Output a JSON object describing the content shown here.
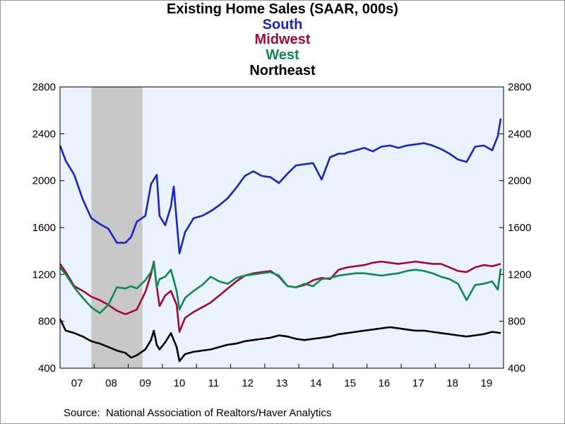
{
  "chart_data": {
    "type": "line",
    "title": "Existing Home Sales (SAAR, 000s)",
    "legend": [
      "South",
      "Midwest",
      "West",
      "Northeast"
    ],
    "legend_placement": "top-center",
    "source": "Source:  National Association of Realtors/Haver Analytics",
    "ylim": [
      400,
      2800
    ],
    "y_ticks": [
      400,
      800,
      1200,
      1600,
      2000,
      2400,
      2800
    ],
    "y_tick_labels": [
      "400",
      "800",
      "1200",
      "1600",
      "2000",
      "2400",
      "2800"
    ],
    "x_tick_labels": [
      "07",
      "08",
      "09",
      "10",
      "11",
      "12",
      "13",
      "14",
      "15",
      "16",
      "17",
      "18",
      "19"
    ],
    "x_range": [
      "2007-01",
      "2019-12"
    ],
    "grid": false,
    "dual_y_axis": true,
    "plot_background": "#eaf3fd",
    "recession_shading": {
      "start": "2007-12",
      "end": "2009-06",
      "color": "#c8c8c8"
    },
    "series": [
      {
        "name": "South",
        "color": "#1a24c4",
        "x": [
          "2007-01",
          "2007-03",
          "2007-06",
          "2007-09",
          "2007-12",
          "2008-03",
          "2008-06",
          "2008-09",
          "2008-12",
          "2009-02",
          "2009-04",
          "2009-07",
          "2009-09",
          "2009-11",
          "2009-12",
          "2010-02",
          "2010-04",
          "2010-05",
          "2010-07",
          "2010-09",
          "2010-12",
          "2011-03",
          "2011-06",
          "2011-09",
          "2011-12",
          "2012-03",
          "2012-06",
          "2012-09",
          "2012-12",
          "2013-03",
          "2013-06",
          "2013-09",
          "2013-12",
          "2014-03",
          "2014-06",
          "2014-09",
          "2014-12",
          "2015-03",
          "2015-05",
          "2015-06",
          "2015-09",
          "2015-12",
          "2016-03",
          "2016-06",
          "2016-09",
          "2016-12",
          "2017-03",
          "2017-06",
          "2017-09",
          "2017-12",
          "2018-03",
          "2018-06",
          "2018-09",
          "2018-12",
          "2019-03",
          "2019-06",
          "2019-09",
          "2019-11",
          "2019-12"
        ],
        "values": [
          2300,
          2170,
          2050,
          1840,
          1680,
          1630,
          1590,
          1470,
          1470,
          1520,
          1650,
          1700,
          1970,
          2050,
          1700,
          1620,
          1780,
          1950,
          1380,
          1560,
          1680,
          1700,
          1740,
          1790,
          1850,
          1940,
          2040,
          2080,
          2040,
          2030,
          1980,
          2060,
          2130,
          2140,
          2150,
          2010,
          2200,
          2230,
          2230,
          2240,
          2260,
          2280,
          2250,
          2290,
          2300,
          2280,
          2300,
          2310,
          2320,
          2300,
          2270,
          2230,
          2180,
          2160,
          2290,
          2300,
          2260,
          2380,
          2530
        ]
      },
      {
        "name": "Midwest",
        "color": "#a30a35",
        "x": [
          "2007-01",
          "2007-03",
          "2007-06",
          "2007-09",
          "2007-12",
          "2008-03",
          "2008-06",
          "2008-09",
          "2008-12",
          "2009-02",
          "2009-04",
          "2009-07",
          "2009-09",
          "2009-10",
          "2009-11",
          "2009-12",
          "2010-02",
          "2010-04",
          "2010-06",
          "2010-07",
          "2010-09",
          "2010-12",
          "2011-03",
          "2011-06",
          "2011-09",
          "2011-12",
          "2012-03",
          "2012-06",
          "2012-09",
          "2012-12",
          "2013-03",
          "2013-06",
          "2013-09",
          "2013-12",
          "2014-03",
          "2014-06",
          "2014-09",
          "2014-12",
          "2015-03",
          "2015-06",
          "2015-09",
          "2015-12",
          "2016-03",
          "2016-06",
          "2016-09",
          "2016-12",
          "2017-03",
          "2017-06",
          "2017-09",
          "2017-12",
          "2018-03",
          "2018-06",
          "2018-09",
          "2018-12",
          "2019-03",
          "2019-06",
          "2019-09",
          "2019-12"
        ],
        "values": [
          1290,
          1220,
          1100,
          1060,
          1010,
          980,
          940,
          890,
          860,
          880,
          900,
          1050,
          1200,
          1310,
          1100,
          930,
          1020,
          1060,
          940,
          710,
          830,
          880,
          920,
          960,
          1020,
          1080,
          1140,
          1190,
          1210,
          1220,
          1230,
          1180,
          1100,
          1090,
          1110,
          1150,
          1170,
          1160,
          1240,
          1260,
          1270,
          1280,
          1300,
          1310,
          1300,
          1290,
          1300,
          1310,
          1300,
          1290,
          1290,
          1260,
          1230,
          1220,
          1260,
          1280,
          1270,
          1290
        ]
      },
      {
        "name": "West",
        "color": "#0f8a4f",
        "x": [
          "2007-01",
          "2007-03",
          "2007-06",
          "2007-09",
          "2007-12",
          "2008-03",
          "2008-06",
          "2008-09",
          "2008-12",
          "2009-02",
          "2009-04",
          "2009-07",
          "2009-09",
          "2009-10",
          "2009-11",
          "2009-12",
          "2010-02",
          "2010-04",
          "2010-06",
          "2010-07",
          "2010-09",
          "2010-12",
          "2011-03",
          "2011-06",
          "2011-09",
          "2011-12",
          "2012-03",
          "2012-06",
          "2012-09",
          "2012-12",
          "2013-03",
          "2013-06",
          "2013-09",
          "2013-12",
          "2014-03",
          "2014-06",
          "2014-09",
          "2014-12",
          "2015-03",
          "2015-06",
          "2015-09",
          "2015-12",
          "2016-03",
          "2016-06",
          "2016-09",
          "2016-12",
          "2017-03",
          "2017-06",
          "2017-09",
          "2017-12",
          "2018-03",
          "2018-06",
          "2018-09",
          "2018-12",
          "2019-03",
          "2019-06",
          "2019-09",
          "2019-11",
          "2019-12"
        ],
        "values": [
          1260,
          1200,
          1090,
          1000,
          920,
          870,
          940,
          1090,
          1080,
          1100,
          1080,
          1150,
          1220,
          1300,
          1090,
          1160,
          1180,
          1240,
          1060,
          900,
          1000,
          1060,
          1110,
          1180,
          1140,
          1120,
          1170,
          1190,
          1200,
          1210,
          1220,
          1190,
          1100,
          1090,
          1120,
          1100,
          1160,
          1170,
          1190,
          1200,
          1210,
          1210,
          1200,
          1190,
          1200,
          1210,
          1230,
          1240,
          1230,
          1210,
          1180,
          1160,
          1120,
          980,
          1110,
          1120,
          1140,
          1070,
          1250
        ]
      },
      {
        "name": "Northeast",
        "color": "#000000",
        "x": [
          "2007-01",
          "2007-03",
          "2007-06",
          "2007-09",
          "2007-12",
          "2008-03",
          "2008-06",
          "2008-09",
          "2008-12",
          "2009-02",
          "2009-04",
          "2009-07",
          "2009-09",
          "2009-10",
          "2009-11",
          "2009-12",
          "2010-02",
          "2010-04",
          "2010-06",
          "2010-07",
          "2010-09",
          "2010-12",
          "2011-03",
          "2011-06",
          "2011-09",
          "2011-12",
          "2012-03",
          "2012-06",
          "2012-09",
          "2012-12",
          "2013-03",
          "2013-06",
          "2013-09",
          "2013-12",
          "2014-03",
          "2014-06",
          "2014-09",
          "2014-12",
          "2015-03",
          "2015-06",
          "2015-09",
          "2015-12",
          "2016-03",
          "2016-06",
          "2016-09",
          "2016-12",
          "2017-03",
          "2017-06",
          "2017-09",
          "2017-12",
          "2018-03",
          "2018-06",
          "2018-09",
          "2018-12",
          "2019-03",
          "2019-06",
          "2019-09",
          "2019-12"
        ],
        "values": [
          820,
          720,
          700,
          670,
          630,
          610,
          580,
          550,
          530,
          490,
          510,
          560,
          640,
          720,
          600,
          560,
          620,
          700,
          580,
          460,
          520,
          540,
          550,
          560,
          580,
          600,
          610,
          630,
          640,
          650,
          660,
          680,
          670,
          650,
          640,
          650,
          660,
          670,
          690,
          700,
          710,
          720,
          730,
          740,
          750,
          740,
          730,
          720,
          720,
          710,
          700,
          690,
          680,
          670,
          680,
          690,
          710,
          700
        ]
      }
    ]
  }
}
